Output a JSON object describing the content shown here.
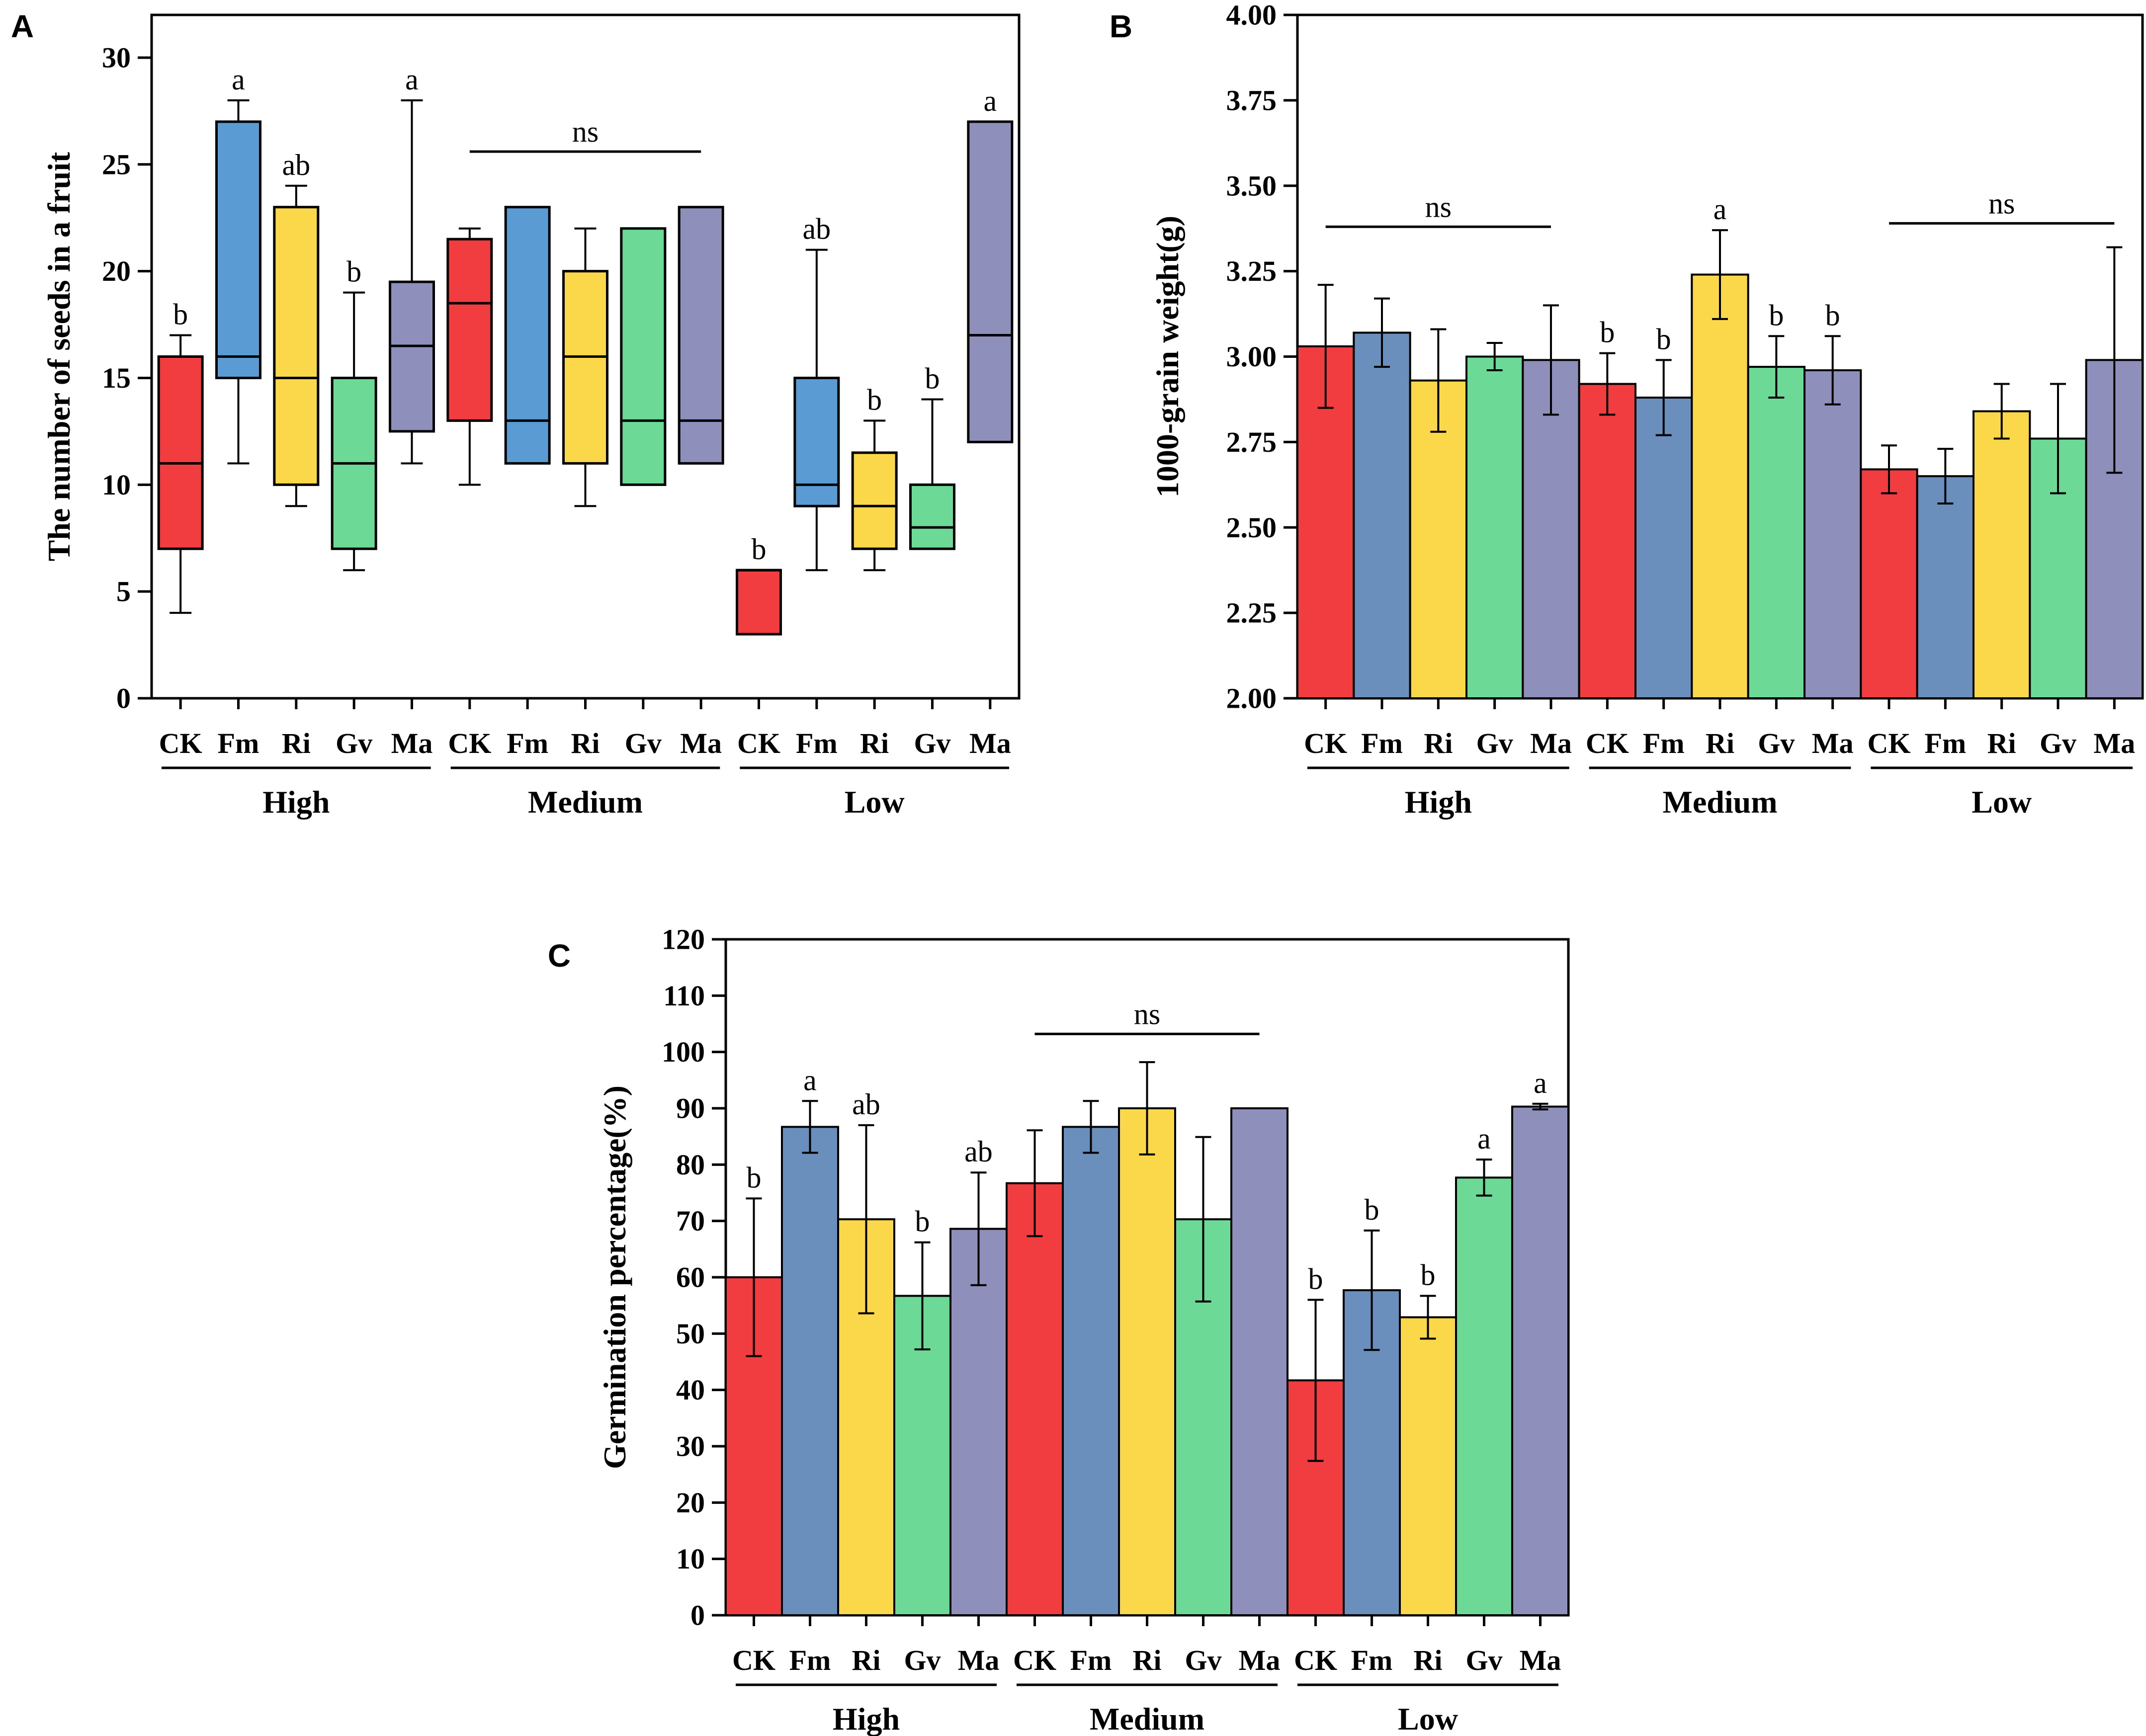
{
  "figure": {
    "colors": {
      "CK": "#f23d40",
      "Fm": "#6a8fbc",
      "Ri": "#fbd74a",
      "Gv": "#6cd996",
      "Ma": "#8f8fbb",
      "Fm_box": "#5a9bd4"
    }
  },
  "chart_data": [
    {
      "panel": "A",
      "type": "box",
      "ylabel": "The number of seeds in a fruit",
      "ylim": [
        0,
        32
      ],
      "yticks": [
        0,
        5,
        10,
        15,
        20,
        25,
        30
      ],
      "groups": [
        "High",
        "Medium",
        "Low"
      ],
      "treatments": [
        "CK",
        "Fm",
        "Ri",
        "Gv",
        "Ma"
      ],
      "boxes": [
        {
          "group": "High",
          "treatment": "CK",
          "min": 4,
          "q1": 7,
          "median": 11,
          "q3": 16,
          "max": 17,
          "label": "b"
        },
        {
          "group": "High",
          "treatment": "Fm",
          "min": 11,
          "q1": 15,
          "median": 16,
          "q3": 27,
          "max": 28,
          "label": "a"
        },
        {
          "group": "High",
          "treatment": "Ri",
          "min": 9,
          "q1": 10,
          "median": 15,
          "q3": 23,
          "max": 24,
          "label": "ab"
        },
        {
          "group": "High",
          "treatment": "Gv",
          "min": 6,
          "q1": 7,
          "median": 11,
          "q3": 15,
          "max": 19,
          "label": "b"
        },
        {
          "group": "High",
          "treatment": "Ma",
          "min": 11,
          "q1": 12.5,
          "median": 16.5,
          "q3": 19.5,
          "max": 28,
          "label": "a"
        },
        {
          "group": "Medium",
          "treatment": "CK",
          "min": 10,
          "q1": 13,
          "median": 18.5,
          "q3": 21.5,
          "max": 22,
          "label": ""
        },
        {
          "group": "Medium",
          "treatment": "Fm",
          "min": 11,
          "q1": 11,
          "median": 13,
          "q3": 23,
          "max": 23,
          "label": ""
        },
        {
          "group": "Medium",
          "treatment": "Ri",
          "min": 9,
          "q1": 11,
          "median": 16,
          "q3": 20,
          "max": 22,
          "label": ""
        },
        {
          "group": "Medium",
          "treatment": "Gv",
          "min": 10,
          "q1": 10,
          "median": 13,
          "q3": 22,
          "max": 22,
          "label": ""
        },
        {
          "group": "Medium",
          "treatment": "Ma",
          "min": 11,
          "q1": 11,
          "median": 13,
          "q3": 23,
          "max": 23,
          "label": ""
        },
        {
          "group": "Low",
          "treatment": "CK",
          "min": 3,
          "q1": 3,
          "median": 6,
          "q3": 6,
          "max": 6,
          "label": "b"
        },
        {
          "group": "Low",
          "treatment": "Fm",
          "min": 6,
          "q1": 9,
          "median": 10,
          "q3": 15,
          "max": 21,
          "label": "ab"
        },
        {
          "group": "Low",
          "treatment": "Ri",
          "min": 6,
          "q1": 7,
          "median": 9,
          "q3": 11.5,
          "max": 13,
          "label": "b"
        },
        {
          "group": "Low",
          "treatment": "Gv",
          "min": 7,
          "q1": 7,
          "median": 8,
          "q3": 10,
          "max": 14,
          "label": "b"
        },
        {
          "group": "Low",
          "treatment": "Ma",
          "min": 12,
          "q1": 12,
          "median": 17,
          "q3": 27,
          "max": 27,
          "label": "a"
        }
      ],
      "annotations": [
        {
          "text": "ns",
          "group": "Medium",
          "value": 25.6
        }
      ]
    },
    {
      "panel": "B",
      "type": "bar",
      "ylabel": "1000-grain weight(g)",
      "ylim": [
        2.0,
        4.0
      ],
      "yticks": [
        "2.00",
        "2.25",
        "2.50",
        "2.75",
        "3.00",
        "3.25",
        "3.50",
        "3.75",
        "4.00"
      ],
      "groups": [
        "High",
        "Medium",
        "Low"
      ],
      "treatments": [
        "CK",
        "Fm",
        "Ri",
        "Gv",
        "Ma"
      ],
      "series": [
        {
          "group": "High",
          "values": [
            3.03,
            3.07,
            2.93,
            3.0,
            2.99
          ],
          "errors": [
            0.18,
            0.1,
            0.15,
            0.04,
            0.16
          ],
          "labels": [
            "",
            "",
            "",
            "",
            ""
          ]
        },
        {
          "group": "Medium",
          "values": [
            2.92,
            2.88,
            3.24,
            2.97,
            2.96
          ],
          "errors": [
            0.09,
            0.11,
            0.13,
            0.09,
            0.1
          ],
          "labels": [
            "b",
            "b",
            "a",
            "b",
            "b"
          ]
        },
        {
          "group": "Low",
          "values": [
            2.67,
            2.65,
            2.84,
            2.76,
            2.99
          ],
          "errors": [
            0.07,
            0.08,
            0.08,
            0.16,
            0.33
          ],
          "labels": [
            "",
            "",
            "",
            "",
            ""
          ]
        }
      ],
      "annotations": [
        {
          "text": "ns",
          "group": "High",
          "value": 3.38
        },
        {
          "text": "ns",
          "group": "Low",
          "value": 3.39
        }
      ]
    },
    {
      "panel": "C",
      "type": "bar",
      "ylabel": "Germination percentage(%)",
      "ylim": [
        0,
        120
      ],
      "yticks": [
        0,
        10,
        20,
        30,
        40,
        50,
        60,
        70,
        80,
        90,
        100,
        110,
        120
      ],
      "groups": [
        "High",
        "Medium",
        "Low"
      ],
      "treatments": [
        "CK",
        "Fm",
        "Ri",
        "Gv",
        "Ma"
      ],
      "series": [
        {
          "group": "High",
          "values": [
            60,
            86.7,
            70.3,
            56.7,
            68.6
          ],
          "errors": [
            14,
            4.6,
            16.7,
            9.5,
            10
          ],
          "labels": [
            "b",
            "a",
            "ab",
            "b",
            "ab"
          ]
        },
        {
          "group": "Medium",
          "values": [
            76.7,
            86.7,
            90,
            70.3,
            90
          ],
          "errors": [
            9.4,
            4.6,
            8.2,
            14.6,
            0
          ],
          "labels": [
            "",
            "",
            "",
            "",
            ""
          ]
        },
        {
          "group": "Low",
          "values": [
            41.7,
            57.7,
            52.9,
            77.7,
            90.3
          ],
          "errors": [
            14.3,
            10.6,
            3.8,
            3.2,
            0.5
          ],
          "labels": [
            "b",
            "b",
            "b",
            "a",
            "a"
          ]
        }
      ],
      "annotations": [
        {
          "text": "ns",
          "group": "Medium",
          "value": 103.2
        }
      ]
    }
  ]
}
